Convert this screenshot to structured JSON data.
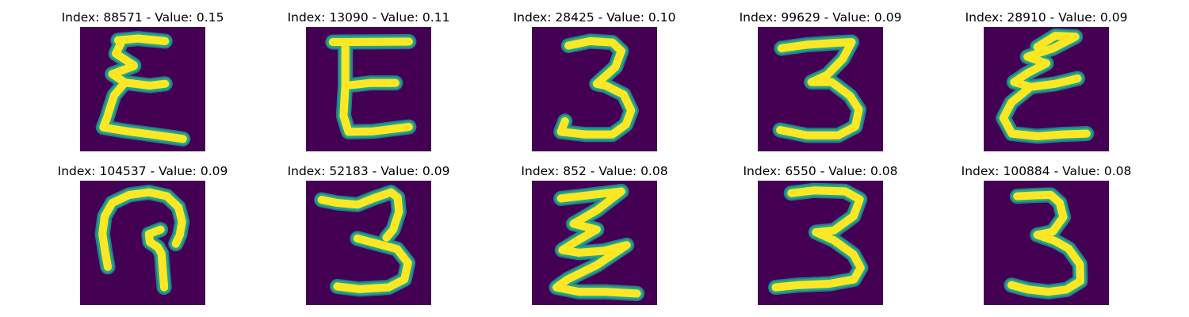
{
  "colors": {
    "background": "#440154",
    "stroke_outer": "#2a788e",
    "stroke_mid": "#22a884",
    "stroke_core": "#fde725"
  },
  "title_labels": {
    "index": "Index:",
    "separator": "-",
    "value": "Value:"
  },
  "items": [
    {
      "index": "88571",
      "value": "0.15",
      "glyph": "epsilon-stroke"
    },
    {
      "index": "13090",
      "value": "0.11",
      "glyph": "letter-e-stroke"
    },
    {
      "index": "28425",
      "value": "0.10",
      "glyph": "three-stroke"
    },
    {
      "index": "99629",
      "value": "0.09",
      "glyph": "three-stroke"
    },
    {
      "index": "28910",
      "value": "0.09",
      "glyph": "epsilon-stroke"
    },
    {
      "index": "104537",
      "value": "0.09",
      "glyph": "hook-stroke"
    },
    {
      "index": "52183",
      "value": "0.09",
      "glyph": "three-stroke"
    },
    {
      "index": "852",
      "value": "0.08",
      "glyph": "zigzag-stroke"
    },
    {
      "index": "6550",
      "value": "0.08",
      "glyph": "three-stroke"
    },
    {
      "index": "100884",
      "value": "0.08",
      "glyph": "three-stroke"
    }
  ]
}
